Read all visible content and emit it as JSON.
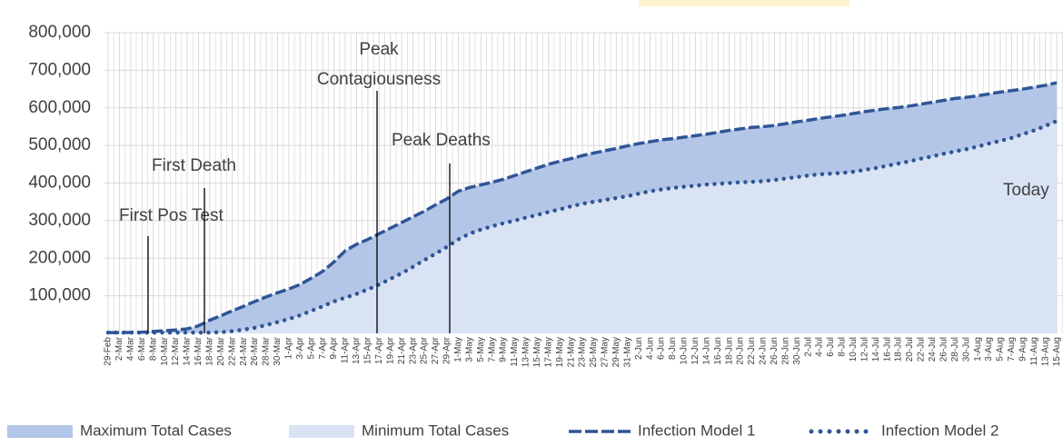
{
  "chart_data": {
    "type": "line",
    "categories": [
      "29-Feb",
      "2-Mar",
      "4-Mar",
      "6-Mar",
      "8-Mar",
      "10-Mar",
      "12-Mar",
      "14-Mar",
      "16-Mar",
      "18-Mar",
      "20-Mar",
      "22-Mar",
      "24-Mar",
      "26-Mar",
      "28-Mar",
      "30-Mar",
      "1-Apr",
      "3-Apr",
      "5-Apr",
      "7-Apr",
      "9-Apr",
      "11-Apr",
      "13-Apr",
      "15-Apr",
      "17-Apr",
      "19-Apr",
      "21-Apr",
      "23-Apr",
      "25-Apr",
      "27-Apr",
      "29-Apr",
      "1-May",
      "3-May",
      "5-May",
      "7-May",
      "9-May",
      "11-May",
      "13-May",
      "15-May",
      "17-May",
      "19-May",
      "21-May",
      "23-May",
      "25-May",
      "27-May",
      "29-May",
      "31-May",
      "2-Jun",
      "4-Jun",
      "6-Jun",
      "8-Jun",
      "10-Jun",
      "12-Jun",
      "14-Jun",
      "16-Jun",
      "18-Jun",
      "20-Jun",
      "22-Jun",
      "24-Jun",
      "26-Jun",
      "28-Jun",
      "30-Jun",
      "2-Jul",
      "4-Jul",
      "6-Jul",
      "8-Jul",
      "10-Jul",
      "12-Jul",
      "14-Jul",
      "16-Jul",
      "18-Jul",
      "20-Jul",
      "22-Jul",
      "24-Jul",
      "26-Jul",
      "28-Jul",
      "30-Jul",
      "1-Aug",
      "3-Aug",
      "5-Aug",
      "7-Aug",
      "9-Aug",
      "11-Aug",
      "13-Aug",
      "15-Aug"
    ],
    "series": [
      {
        "name": "Maximum Total Cases",
        "type": "area",
        "color": "#b4c6e7",
        "values": [
          2000,
          2000,
          2500,
          3000,
          5000,
          7000,
          9000,
          12000,
          20000,
          35000,
          47000,
          60000,
          72000,
          85000,
          97000,
          108000,
          118000,
          130000,
          147000,
          165000,
          190000,
          220000,
          237000,
          250000,
          265000,
          280000,
          295000,
          310000,
          325000,
          342000,
          358000,
          378000,
          388000,
          395000,
          402000,
          410000,
          420000,
          430000,
          440000,
          450000,
          458000,
          465000,
          473000,
          480000,
          486000,
          492000,
          499000,
          505000,
          510000,
          515000,
          518000,
          522000,
          526000,
          530000,
          535000,
          540000,
          544000,
          548000,
          550000,
          553000,
          558000,
          563000,
          567000,
          572000,
          576000,
          580000,
          585000,
          590000,
          594000,
          598000,
          601000,
          605000,
          610000,
          615000,
          620000,
          625000,
          628000,
          632000,
          637000,
          642000,
          646000,
          650000,
          655000,
          660000,
          667000
        ]
      },
      {
        "name": "Minimum Total Cases",
        "type": "area",
        "color": "#dae3f3",
        "values": [
          2000,
          2000,
          2000,
          2000,
          2000,
          2000,
          2000,
          2000,
          2000,
          2000,
          3000,
          6000,
          10000,
          15000,
          22000,
          30000,
          38000,
          48000,
          60000,
          72000,
          85000,
          95000,
          105000,
          117000,
          130000,
          145000,
          160000,
          177000,
          195000,
          212000,
          230000,
          250000,
          265000,
          276000,
          285000,
          293000,
          300000,
          308000,
          315000,
          323000,
          330000,
          338000,
          345000,
          350000,
          355000,
          360000,
          365000,
          372000,
          378000,
          383000,
          387000,
          390000,
          393000,
          396000,
          398000,
          400000,
          402000,
          403000,
          405000,
          408000,
          412000,
          416000,
          420000,
          423000,
          425000,
          427000,
          430000,
          435000,
          440000,
          446000,
          452000,
          458000,
          465000,
          471000,
          478000,
          484000,
          490000,
          497000,
          505000,
          512000,
          520000,
          530000,
          540000,
          552000,
          565000
        ]
      },
      {
        "name": "Infection Model 1",
        "type": "line",
        "style": "dashed",
        "color": "#2f5597",
        "values": [
          2000,
          2000,
          2500,
          3000,
          5000,
          7000,
          9000,
          12000,
          20000,
          35000,
          47000,
          60000,
          72000,
          85000,
          97000,
          108000,
          118000,
          130000,
          147000,
          165000,
          190000,
          220000,
          237000,
          250000,
          265000,
          280000,
          295000,
          310000,
          325000,
          342000,
          358000,
          378000,
          388000,
          395000,
          402000,
          410000,
          420000,
          430000,
          440000,
          450000,
          458000,
          465000,
          473000,
          480000,
          486000,
          492000,
          499000,
          505000,
          510000,
          515000,
          518000,
          522000,
          526000,
          530000,
          535000,
          540000,
          544000,
          548000,
          550000,
          553000,
          558000,
          563000,
          567000,
          572000,
          576000,
          580000,
          585000,
          590000,
          594000,
          598000,
          601000,
          605000,
          610000,
          615000,
          620000,
          625000,
          628000,
          632000,
          637000,
          642000,
          646000,
          650000,
          655000,
          660000,
          667000
        ]
      },
      {
        "name": "Infection Model 2",
        "type": "line",
        "style": "dotted",
        "color": "#2f5597",
        "values": [
          2000,
          2000,
          2000,
          2000,
          2000,
          2000,
          2000,
          2000,
          2000,
          2000,
          3000,
          6000,
          10000,
          15000,
          22000,
          30000,
          38000,
          48000,
          60000,
          72000,
          85000,
          95000,
          105000,
          117000,
          130000,
          145000,
          160000,
          177000,
          195000,
          212000,
          230000,
          250000,
          265000,
          276000,
          285000,
          293000,
          300000,
          308000,
          315000,
          323000,
          330000,
          338000,
          345000,
          350000,
          355000,
          360000,
          365000,
          372000,
          378000,
          383000,
          387000,
          390000,
          393000,
          396000,
          398000,
          400000,
          402000,
          403000,
          405000,
          408000,
          412000,
          416000,
          420000,
          423000,
          425000,
          427000,
          430000,
          435000,
          440000,
          446000,
          452000,
          458000,
          465000,
          471000,
          478000,
          484000,
          490000,
          497000,
          505000,
          512000,
          520000,
          530000,
          540000,
          552000,
          565000
        ]
      }
    ],
    "ylim": [
      0,
      800000
    ],
    "yticks": [
      {
        "value": 100000,
        "label": "100,000"
      },
      {
        "value": 200000,
        "label": "200,000"
      },
      {
        "value": 300000,
        "label": "300,000"
      },
      {
        "value": 400000,
        "label": "400,000"
      },
      {
        "value": 500000,
        "label": "500,000"
      },
      {
        "value": 600000,
        "label": "600,000"
      },
      {
        "value": 700000,
        "label": "700,000"
      },
      {
        "value": 800000,
        "label": "800,000"
      }
    ],
    "grid": true,
    "legend": "bottom",
    "annotations": [
      {
        "label": "First Pos Test"
      },
      {
        "label": "First Death"
      },
      {
        "label": "Peak Contagiousness"
      },
      {
        "label": "Peak Deaths"
      },
      {
        "label": "Today"
      }
    ]
  }
}
